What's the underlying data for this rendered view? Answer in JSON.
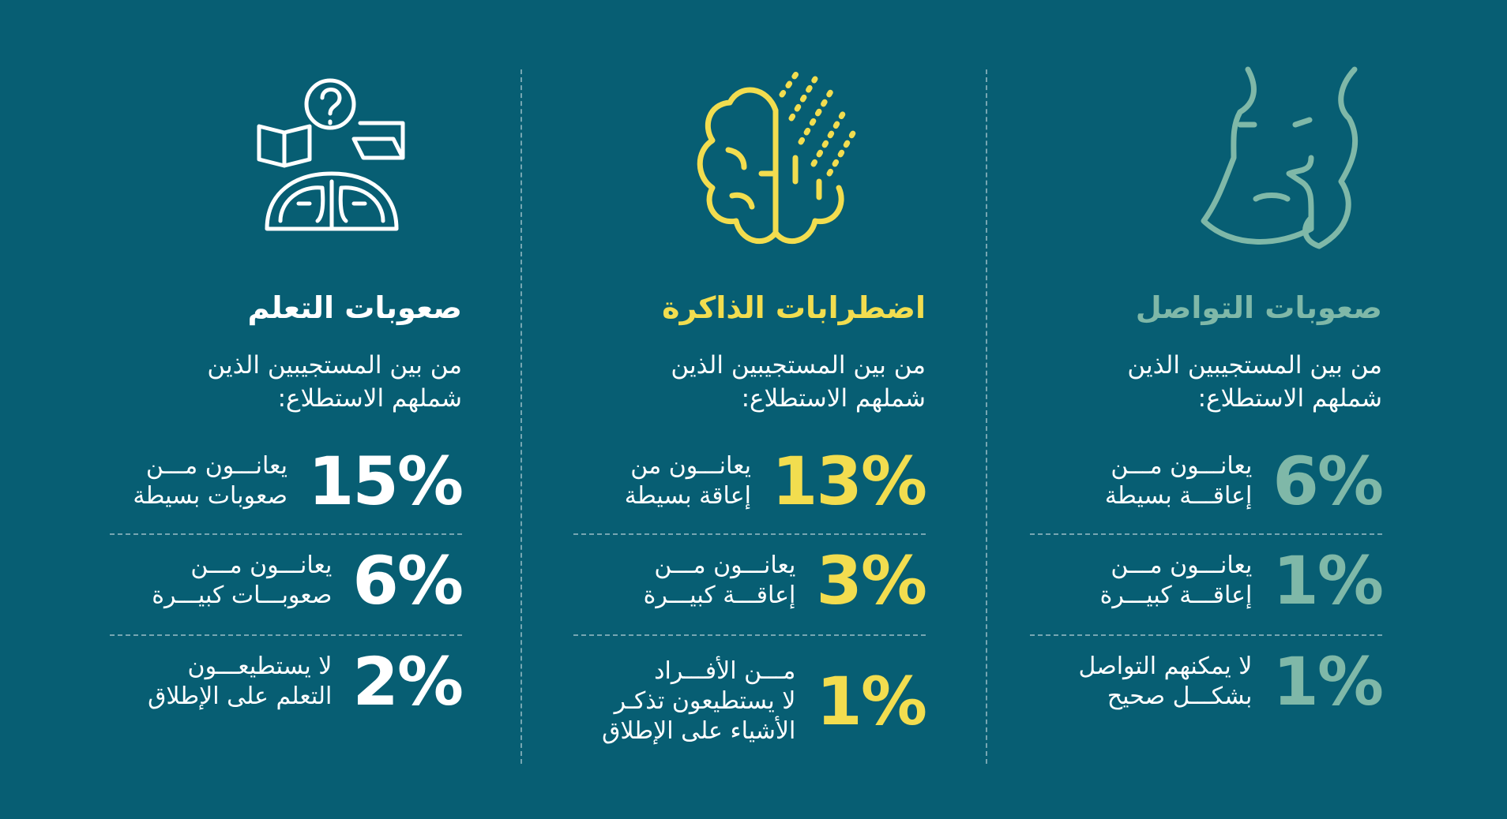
{
  "colors": {
    "background": "#075e73",
    "communication": "#7fb8a8",
    "memory": "#f2dd4f",
    "learning": "#ffffff",
    "text": "#ffffff"
  },
  "icons": [
    "face-profile-icon",
    "brain-particles-icon",
    "brain-book-question-icon"
  ],
  "columns": [
    {
      "id": "communication",
      "title": "صعوبات التواصل",
      "intro": [
        "من بين المستجيبين الذين",
        "شملهم الاستطلاع:"
      ],
      "stats": [
        {
          "value": "6%",
          "text": [
            "يعانـــون مـــن",
            "إعاقـــة بسيطة"
          ]
        },
        {
          "value": "1%",
          "text": [
            "يعانـــون مـــن",
            "إعاقـــة كبيـــرة"
          ]
        },
        {
          "value": "1%",
          "text": [
            "لا يمكنهم التواصل",
            "بشكـــل صحيح"
          ]
        }
      ]
    },
    {
      "id": "memory",
      "title": "اضطرابات الذاكرة",
      "intro": [
        "من بين المستجيبين الذين",
        "شملهم الاستطلاع:"
      ],
      "stats": [
        {
          "value": "13%",
          "text": [
            "يعانـــون من",
            "إعاقة بسيطة"
          ]
        },
        {
          "value": "3%",
          "text": [
            "يعانـــون مـــن",
            "إعاقـــة كبيـــرة"
          ]
        },
        {
          "value": "1%",
          "text": [
            "مـــن الأفـــراد",
            "لا يستطيعون تذكـر",
            "الأشياء على الإطلاق"
          ]
        }
      ]
    },
    {
      "id": "learning",
      "title": "صعوبات التعلم",
      "intro": [
        "من بين المستجيبين الذين",
        "شملهم الاستطلاع:"
      ],
      "stats": [
        {
          "value": "15%",
          "text": [
            "يعانـــون مـــن",
            "صعوبات بسيطة"
          ]
        },
        {
          "value": "6%",
          "text": [
            "يعانـــون مـــن",
            "صعوبـــات كبيـــرة"
          ]
        },
        {
          "value": "2%",
          "text": [
            "لا يستطيعـــون",
            "التعلم على الإطلاق"
          ]
        }
      ]
    }
  ]
}
